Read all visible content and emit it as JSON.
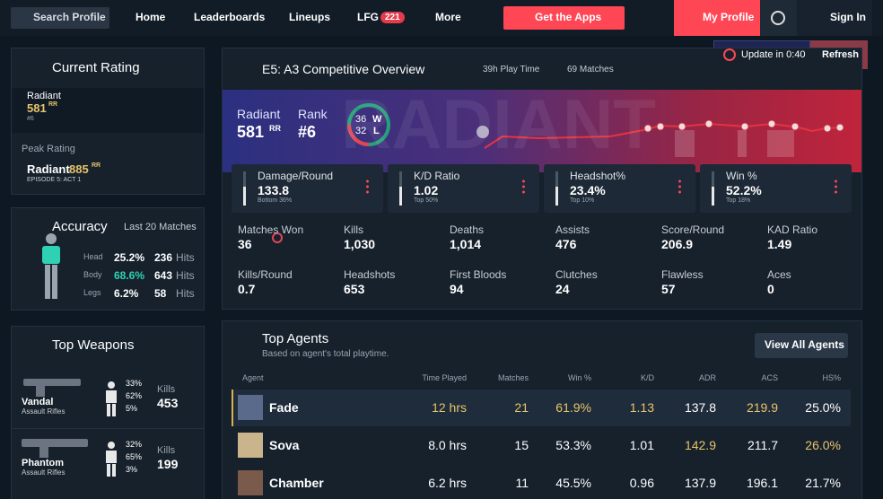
{
  "nav": {
    "search": "Search Profile",
    "links": [
      "Home",
      "Leaderboards",
      "Lineups"
    ],
    "lfg": "LFG",
    "lfg_count": "221",
    "more": "More",
    "apps": "Get the Apps",
    "profile": "My Profile",
    "sign_in": "Sign In"
  },
  "update": {
    "label": "Update in 0:40",
    "refresh": "Refresh"
  },
  "current_rating": {
    "title": "Current Rating",
    "rank": "Radiant",
    "rating": "581",
    "unit": "RR",
    "position": "#6",
    "peak_title": "Peak Rating",
    "peak_rank": "Radiant",
    "peak_rating": "885",
    "peak_unit": "RR",
    "peak_episode": "EPISODE 5: ACT 1"
  },
  "accuracy": {
    "title": "Accuracy",
    "period": "Last 20 Matches",
    "rows": [
      {
        "part": "Head",
        "percent": "25.2%",
        "hits": "236",
        "hits_label": "Hits"
      },
      {
        "part": "Body",
        "percent": "68.6%",
        "hits": "643",
        "hits_label": "Hits"
      },
      {
        "part": "Legs",
        "percent": "6.2%",
        "hits": "58",
        "hits_label": "Hits"
      }
    ]
  },
  "weapons": {
    "title": "Top Weapons",
    "kills_label": "Kills",
    "items": [
      {
        "name": "Vandal",
        "type": "Assault Rifles",
        "head": "33%",
        "body": "62%",
        "legs": "5%",
        "kills": "453"
      },
      {
        "name": "Phantom",
        "type": "Assault Rifles",
        "head": "32%",
        "body": "65%",
        "legs": "3%",
        "kills": "199"
      }
    ]
  },
  "overview": {
    "title": "E5: A3 Competitive Overview",
    "playtime": "39h Play Time",
    "matches": "69 Matches",
    "watermark": "RADIANT",
    "rank": "Radiant",
    "rating": "581",
    "unit": "RR",
    "rank_label": "Rank",
    "position": "#6",
    "wins": "36",
    "wins_label": "W",
    "losses": "32",
    "losses_label": "L"
  },
  "cards": [
    {
      "label": "Damage/Round",
      "value": "133.8",
      "percentile": "Bottom 36%"
    },
    {
      "label": "K/D Ratio",
      "value": "1.02",
      "percentile": "Top 50%"
    },
    {
      "label": "Headshot%",
      "value": "23.4%",
      "percentile": "Top 10%"
    },
    {
      "label": "Win %",
      "value": "52.2%",
      "percentile": "Top 18%"
    }
  ],
  "stats": [
    {
      "label": "Matches Won",
      "value": "36"
    },
    {
      "label": "Kills",
      "value": "1,030"
    },
    {
      "label": "Deaths",
      "value": "1,014"
    },
    {
      "label": "Assists",
      "value": "476"
    },
    {
      "label": "Score/Round",
      "value": "206.9"
    },
    {
      "label": "KAD Ratio",
      "value": "1.49"
    },
    {
      "label": "Kills/Round",
      "value": "0.7"
    },
    {
      "label": "Headshots",
      "value": "653"
    },
    {
      "label": "First Bloods",
      "value": "94"
    },
    {
      "label": "Clutches",
      "value": "24"
    },
    {
      "label": "Flawless",
      "value": "57"
    },
    {
      "label": "Aces",
      "value": "0"
    }
  ],
  "agents": {
    "title": "Top Agents",
    "subtitle": "Based on agent's total playtime.",
    "view_all": "View All Agents",
    "columns": [
      "Agent",
      "Time Played",
      "Matches",
      "Win %",
      "K/D",
      "ADR",
      "ACS",
      "HS%"
    ],
    "rows": [
      [
        "Fade",
        "12 hrs",
        "21",
        "61.9%",
        "1.13",
        "137.8",
        "219.9",
        "25.0%"
      ],
      [
        "Sova",
        "8.0 hrs",
        "15",
        "53.3%",
        "1.01",
        "142.9",
        "211.7",
        "26.0%"
      ],
      [
        "Chamber",
        "6.2 hrs",
        "11",
        "45.5%",
        "0.96",
        "137.9",
        "196.1",
        "21.7%"
      ]
    ]
  }
}
